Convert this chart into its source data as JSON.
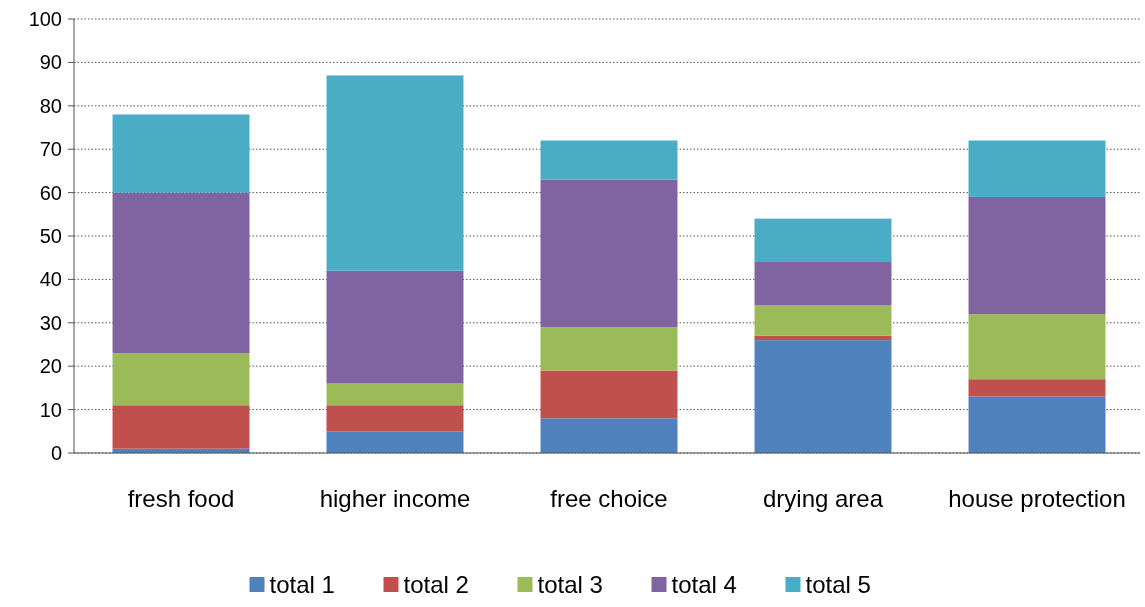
{
  "chart_data": {
    "type": "bar",
    "stacked": true,
    "categories": [
      "fresh food",
      "higher income",
      "free choice",
      "drying area",
      "house protection"
    ],
    "series": [
      {
        "name": "total 1",
        "color": "#4f81bd",
        "values": [
          1,
          5,
          8,
          26,
          13
        ]
      },
      {
        "name": "total 2",
        "color": "#c0504d",
        "values": [
          10,
          6,
          11,
          1,
          4
        ]
      },
      {
        "name": "total 3",
        "color": "#9bbb59",
        "values": [
          12,
          5,
          10,
          7,
          15
        ]
      },
      {
        "name": "total 4",
        "color": "#8064a2",
        "values": [
          37,
          26,
          34,
          10,
          27
        ]
      },
      {
        "name": "total 5",
        "color": "#4bacc6",
        "values": [
          18,
          45,
          9,
          10,
          13
        ]
      }
    ],
    "ylim": [
      0,
      100
    ],
    "yticks": [
      0,
      10,
      20,
      30,
      40,
      50,
      60,
      70,
      80,
      90,
      100
    ],
    "grid": "y",
    "legend": "bottom"
  }
}
